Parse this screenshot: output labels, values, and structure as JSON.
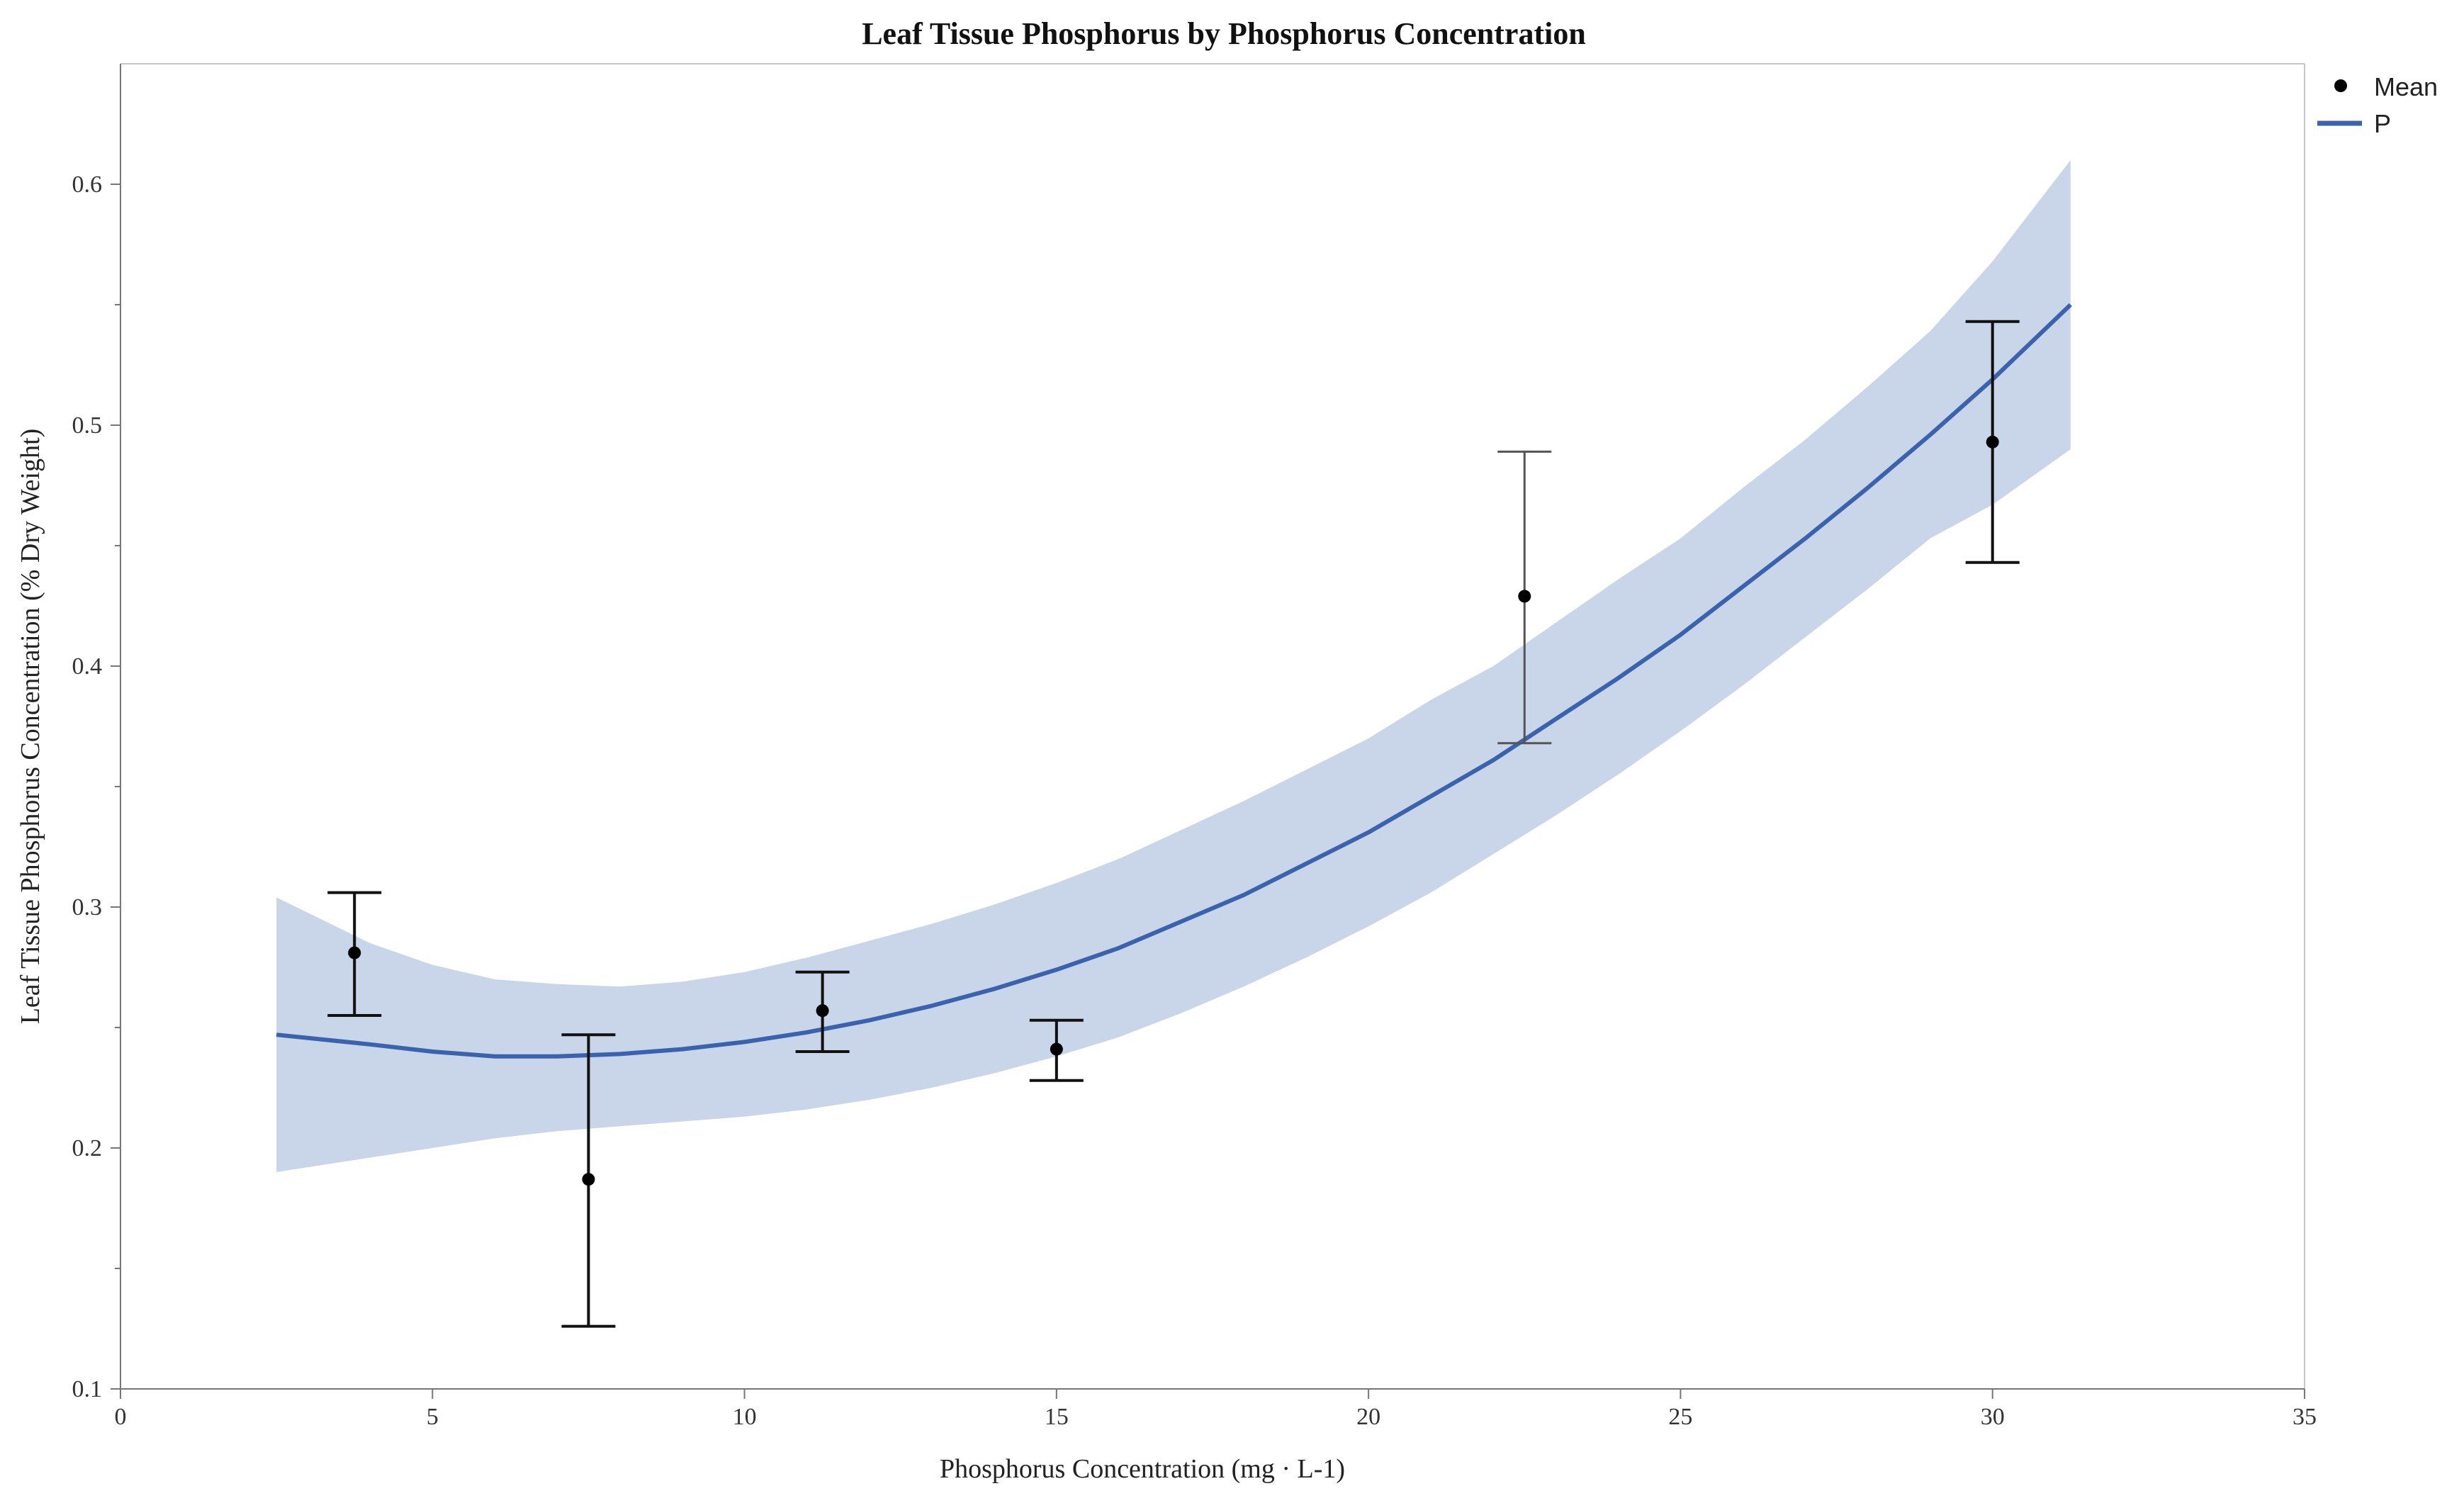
{
  "chart_data": {
    "type": "scatter",
    "title": "Leaf Tissue Phosphorus by Phosphorus Concentration",
    "xlabel": "Phosphorus Concentration (mg · L-1)",
    "ylabel": "Leaf Tissue Phosphorus Concentration (% Dry Weight)",
    "xlim": [
      0,
      35
    ],
    "ylim": [
      0.1,
      0.65
    ],
    "x_ticks": [
      0,
      5,
      10,
      15,
      20,
      25,
      30,
      35
    ],
    "x_tick_labels": [
      "0",
      "5",
      "10",
      "15",
      "20",
      "25",
      "30",
      "35"
    ],
    "y_ticks": [
      0.1,
      0.2,
      0.3,
      0.4,
      0.5,
      0.6
    ],
    "y_tick_labels": [
      "0.1",
      "0.2",
      "0.3",
      "0.4",
      "0.5",
      "0.6"
    ],
    "y_minor_ticks": [
      0.15,
      0.25,
      0.35,
      0.45,
      0.55
    ],
    "grid": false,
    "legend_position": "top-right",
    "legend": [
      {
        "label": "Mean",
        "kind": "marker"
      },
      {
        "label": "P",
        "kind": "line"
      }
    ],
    "means": [
      {
        "x": 3.75,
        "y": 0.281,
        "lower": 0.255,
        "upper": 0.306
      },
      {
        "x": 7.5,
        "y": 0.187,
        "lower": 0.126,
        "upper": 0.247
      },
      {
        "x": 11.25,
        "y": 0.257,
        "lower": 0.24,
        "upper": 0.273
      },
      {
        "x": 15,
        "y": 0.241,
        "lower": 0.228,
        "upper": 0.253
      },
      {
        "x": 22.5,
        "y": 0.429,
        "lower": 0.368,
        "upper": 0.489
      },
      {
        "x": 30,
        "y": 0.493,
        "lower": 0.443,
        "upper": 0.543
      }
    ],
    "fit": {
      "name": "P",
      "x": [
        2.5,
        4,
        5,
        6,
        7,
        8,
        9,
        10,
        11,
        12,
        13,
        14,
        15,
        16,
        17,
        18,
        19,
        20,
        21,
        22,
        23,
        24,
        25,
        26,
        27,
        28,
        29,
        30,
        31.25
      ],
      "y": [
        0.247,
        0.243,
        0.24,
        0.238,
        0.238,
        0.239,
        0.241,
        0.244,
        0.248,
        0.253,
        0.259,
        0.266,
        0.274,
        0.283,
        0.294,
        0.305,
        0.318,
        0.331,
        0.346,
        0.361,
        0.378,
        0.395,
        0.413,
        0.433,
        0.453,
        0.474,
        0.496,
        0.519,
        0.55
      ],
      "lower": [
        0.19,
        0.196,
        0.2,
        0.204,
        0.207,
        0.209,
        0.211,
        0.213,
        0.216,
        0.22,
        0.225,
        0.231,
        0.238,
        0.246,
        0.256,
        0.267,
        0.279,
        0.292,
        0.306,
        0.322,
        0.338,
        0.355,
        0.373,
        0.392,
        0.412,
        0.432,
        0.453,
        0.467,
        0.49
      ],
      "upper": [
        0.304,
        0.285,
        0.276,
        0.27,
        0.268,
        0.267,
        0.269,
        0.273,
        0.279,
        0.286,
        0.293,
        0.301,
        0.31,
        0.32,
        0.332,
        0.344,
        0.357,
        0.37,
        0.386,
        0.4,
        0.418,
        0.436,
        0.453,
        0.474,
        0.494,
        0.516,
        0.539,
        0.568,
        0.61
      ]
    },
    "colors": {
      "fit_line": "#3a62ad",
      "band": "#c9d5e8",
      "marker": "#000000"
    }
  }
}
